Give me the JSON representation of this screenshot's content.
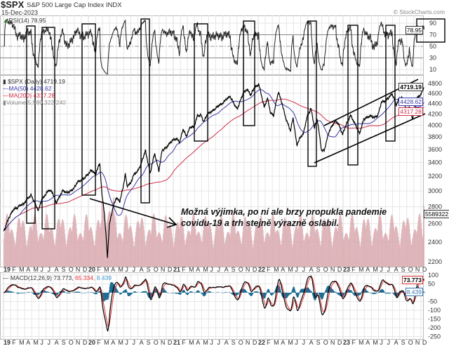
{
  "header": {
    "ticker": "$SPX",
    "name": "S&P 500 Large Cap Index INDX",
    "date": "15-Dec-2023",
    "copyright": "© StockCharts.com"
  },
  "legend": {
    "rsi": "RSI(14) 78.95",
    "price": "$SPX (Daily) 4719.19",
    "ma50": "MA(50) 4428.62",
    "ma200": "MA(200) 4317.28",
    "volume": "Volume 5,589,322,240",
    "macd_label": "MACD(12,26,9) 73.773,",
    "macd_signal": " 65.334,",
    "macd_hist": " 8.439"
  },
  "tags": {
    "rsi": "78.95",
    "price": "4719.19",
    "ma50": "4428.62",
    "ma200": "4317.28",
    "volume": "5589322",
    "macd": "73.773",
    "macd_hist": "8.439"
  },
  "annotation": {
    "line1": "Možná výjimka, po ní ale brzy propukla pandemie",
    "line2": "covidu-19 a trh stejně výrazně oslabil."
  },
  "colors": {
    "price": "#000000",
    "ma50": "#3a3aa8",
    "ma200": "#d0304a",
    "volume_up": "#e8a0a8",
    "volume_down": "#b8b8b8",
    "macd": "#000000",
    "signal": "#e03030",
    "histogram": "#1f6e94",
    "grid": "#e6e6e6"
  },
  "chart_data": {
    "type": "line",
    "title": "$SPX",
    "subtitle": "S&P 500 Large Cap Index INDX",
    "y_scale": "log",
    "price_ticks": [
      2200,
      2400,
      2600,
      2800,
      3000,
      3200,
      3400,
      3600,
      3800,
      4000,
      4200,
      4400,
      4600,
      4800
    ],
    "rsi_ticks": [
      10,
      30,
      50,
      70,
      90
    ],
    "macd_ticks": [
      100,
      50,
      -50,
      -100,
      -150,
      -200,
      -250
    ],
    "x_tick_labels": [
      "19",
      "F",
      "M",
      "A",
      "M",
      "J",
      "J",
      "A",
      "S",
      "O",
      "N",
      "D",
      "20",
      "F",
      "M",
      "A",
      "M",
      "J",
      "J",
      "A",
      "S",
      "O",
      "N",
      "D",
      "21",
      "F",
      "M",
      "A",
      "M",
      "J",
      "J",
      "A",
      "S",
      "O",
      "N",
      "D",
      "22",
      "F",
      "M",
      "A",
      "M",
      "J",
      "J",
      "A",
      "S",
      "O",
      "N",
      "D",
      "23",
      "F",
      "M",
      "A",
      "M",
      "J",
      "J",
      "A",
      "S",
      "O",
      "N",
      "D"
    ],
    "grid": true,
    "series": [
      {
        "name": "$SPX (Daily)",
        "points": [
          [
            "2019-01-02",
            2510
          ],
          [
            "2019-01-15",
            2610
          ],
          [
            "2019-01-31",
            2704
          ],
          [
            "2019-02-15",
            2775
          ],
          [
            "2019-02-28",
            2784
          ],
          [
            "2019-03-15",
            2822
          ],
          [
            "2019-03-29",
            2834
          ],
          [
            "2019-04-15",
            2905
          ],
          [
            "2019-04-30",
            2946
          ],
          [
            "2019-05-15",
            2850
          ],
          [
            "2019-05-31",
            2752
          ],
          [
            "2019-06-14",
            2887
          ],
          [
            "2019-06-28",
            2942
          ],
          [
            "2019-07-15",
            3014
          ],
          [
            "2019-07-31",
            2980
          ],
          [
            "2019-08-15",
            2848
          ],
          [
            "2019-08-30",
            2926
          ],
          [
            "2019-09-13",
            3007
          ],
          [
            "2019-09-30",
            2977
          ],
          [
            "2019-10-15",
            2995
          ],
          [
            "2019-10-31",
            3038
          ],
          [
            "2019-11-15",
            3120
          ],
          [
            "2019-11-29",
            3141
          ],
          [
            "2019-12-13",
            3169
          ],
          [
            "2019-12-31",
            3231
          ],
          [
            "2020-01-15",
            3289
          ],
          [
            "2020-01-31",
            3226
          ],
          [
            "2020-02-19",
            3386
          ],
          [
            "2020-02-28",
            2954
          ],
          [
            "2020-03-09",
            2747
          ],
          [
            "2020-03-23",
            2237
          ],
          [
            "2020-03-31",
            2585
          ],
          [
            "2020-04-15",
            2784
          ],
          [
            "2020-04-30",
            2912
          ],
          [
            "2020-05-15",
            2864
          ],
          [
            "2020-05-29",
            3044
          ],
          [
            "2020-06-08",
            3232
          ],
          [
            "2020-06-15",
            3067
          ],
          [
            "2020-06-30",
            3100
          ],
          [
            "2020-07-15",
            3227
          ],
          [
            "2020-07-31",
            3271
          ],
          [
            "2020-08-14",
            3373
          ],
          [
            "2020-09-02",
            3580
          ],
          [
            "2020-09-23",
            3237
          ],
          [
            "2020-09-30",
            3363
          ],
          [
            "2020-10-12",
            3534
          ],
          [
            "2020-10-30",
            3270
          ],
          [
            "2020-11-13",
            3585
          ],
          [
            "2020-11-30",
            3622
          ],
          [
            "2020-12-15",
            3695
          ],
          [
            "2020-12-31",
            3756
          ],
          [
            "2021-01-15",
            3768
          ],
          [
            "2021-01-29",
            3714
          ],
          [
            "2021-02-12",
            3934
          ],
          [
            "2021-02-26",
            3811
          ],
          [
            "2021-03-15",
            3968
          ],
          [
            "2021-03-31",
            3973
          ],
          [
            "2021-04-15",
            4170
          ],
          [
            "2021-04-30",
            4181
          ],
          [
            "2021-05-12",
            4063
          ],
          [
            "2021-05-28",
            4204
          ],
          [
            "2021-06-15",
            4246
          ],
          [
            "2021-06-30",
            4298
          ],
          [
            "2021-07-15",
            4360
          ],
          [
            "2021-07-30",
            4395
          ],
          [
            "2021-08-16",
            4479
          ],
          [
            "2021-09-02",
            4537
          ],
          [
            "2021-09-30",
            4308
          ],
          [
            "2021-10-04",
            4300
          ],
          [
            "2021-10-29",
            4605
          ],
          [
            "2021-11-15",
            4682
          ],
          [
            "2021-11-30",
            4567
          ],
          [
            "2021-12-15",
            4709
          ],
          [
            "2021-12-31",
            4766
          ],
          [
            "2022-01-03",
            4797
          ],
          [
            "2022-01-27",
            4326
          ],
          [
            "2022-02-10",
            4504
          ],
          [
            "2022-02-23",
            4225
          ],
          [
            "2022-03-08",
            4170
          ],
          [
            "2022-03-29",
            4632
          ],
          [
            "2022-04-14",
            4392
          ],
          [
            "2022-04-29",
            4132
          ],
          [
            "2022-05-20",
            3901
          ],
          [
            "2022-05-31",
            4132
          ],
          [
            "2022-06-16",
            3667
          ],
          [
            "2022-06-30",
            3785
          ],
          [
            "2022-07-15",
            3863
          ],
          [
            "2022-07-29",
            4130
          ],
          [
            "2022-08-16",
            4305
          ],
          [
            "2022-08-31",
            3955
          ],
          [
            "2022-09-12",
            4110
          ],
          [
            "2022-09-30",
            3586
          ],
          [
            "2022-10-12",
            3577
          ],
          [
            "2022-10-31",
            3872
          ],
          [
            "2022-11-15",
            3992
          ],
          [
            "2022-11-30",
            4080
          ],
          [
            "2022-12-13",
            4019
          ],
          [
            "2022-12-30",
            3840
          ],
          [
            "2023-01-13",
            3999
          ],
          [
            "2023-02-02",
            4179
          ],
          [
            "2023-02-28",
            3970
          ],
          [
            "2023-03-13",
            3855
          ],
          [
            "2023-03-31",
            4109
          ],
          [
            "2023-04-14",
            4137
          ],
          [
            "2023-04-28",
            4169
          ],
          [
            "2023-05-15",
            4136
          ],
          [
            "2023-05-31",
            4180
          ],
          [
            "2023-06-15",
            4426
          ],
          [
            "2023-06-30",
            4450
          ],
          [
            "2023-07-14",
            4505
          ],
          [
            "2023-07-31",
            4589
          ],
          [
            "2023-08-18",
            4370
          ],
          [
            "2023-08-31",
            4508
          ],
          [
            "2023-09-14",
            4505
          ],
          [
            "2023-09-29",
            4288
          ],
          [
            "2023-10-13",
            4328
          ],
          [
            "2023-10-27",
            4117
          ],
          [
            "2023-11-15",
            4502
          ],
          [
            "2023-11-30",
            4568
          ],
          [
            "2023-12-15",
            4719.19
          ]
        ]
      }
    ],
    "last_values": {
      "close": 4719.19,
      "ma50": 4428.62,
      "ma200": 4317.28,
      "rsi": 78.95,
      "macd": 73.773,
      "signal": 65.334,
      "histogram": 8.439,
      "volume": 5589322240
    }
  }
}
